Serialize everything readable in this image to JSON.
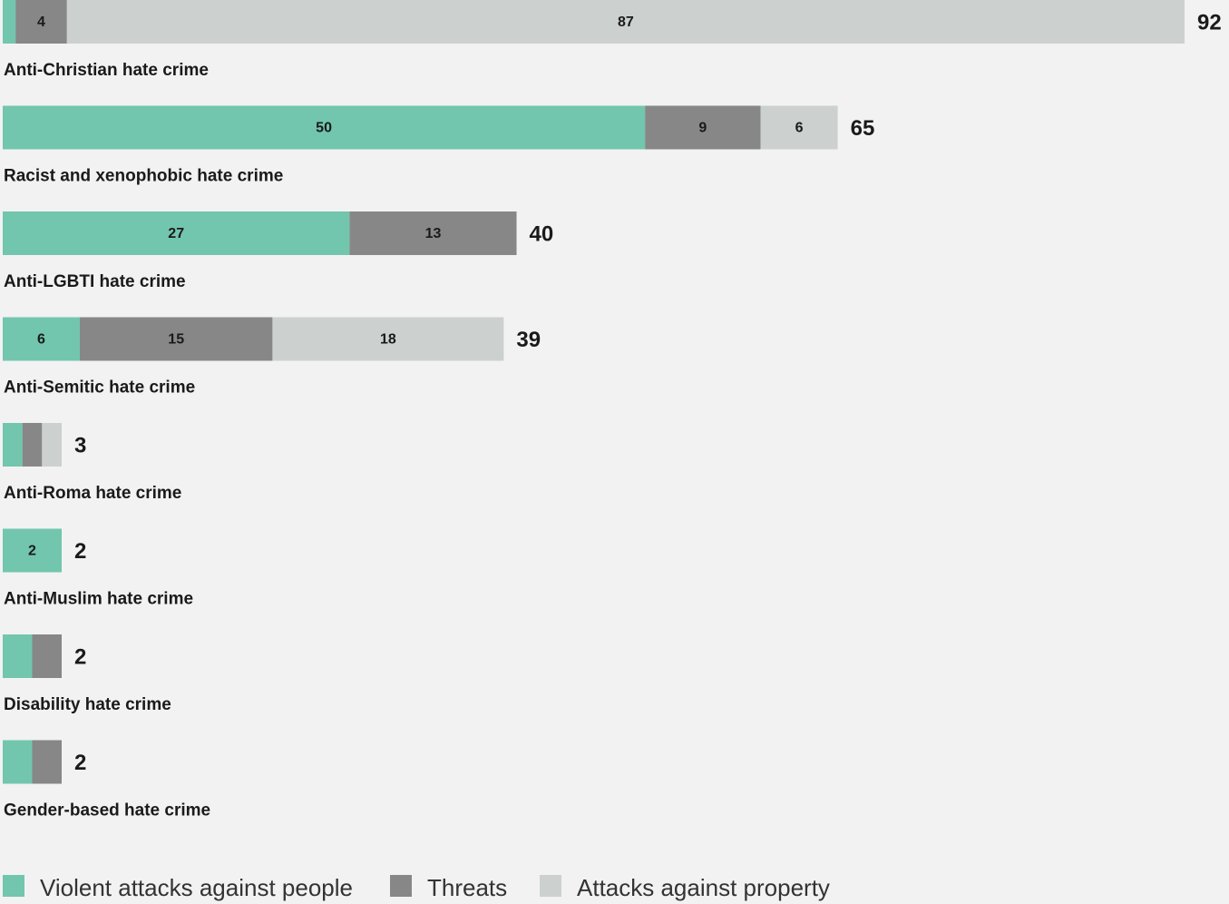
{
  "chart_data": {
    "type": "bar",
    "orientation": "horizontal",
    "stacked": true,
    "categories": [
      "Anti-Christian hate crime",
      "Racist and xenophobic hate crime",
      "Anti-LGBTI hate crime",
      "Anti-Semitic hate crime",
      "Anti-Roma hate crime",
      "Anti-Muslim hate crime",
      "Disability hate crime",
      "Gender-based hate crime"
    ],
    "series": [
      {
        "name": "Violent attacks against people",
        "color": "#72c6ad",
        "values": [
          1,
          50,
          27,
          6,
          1,
          2,
          1,
          1
        ]
      },
      {
        "name": "Threats",
        "color": "#878787",
        "values": [
          4,
          9,
          13,
          15,
          1,
          0,
          1,
          1
        ]
      },
      {
        "name": "Attacks against property",
        "color": "#ccd0cf",
        "values": [
          87,
          6,
          0,
          18,
          1,
          0,
          0,
          0
        ]
      }
    ],
    "totals": [
      92,
      65,
      40,
      39,
      3,
      2,
      2,
      2
    ]
  }
}
